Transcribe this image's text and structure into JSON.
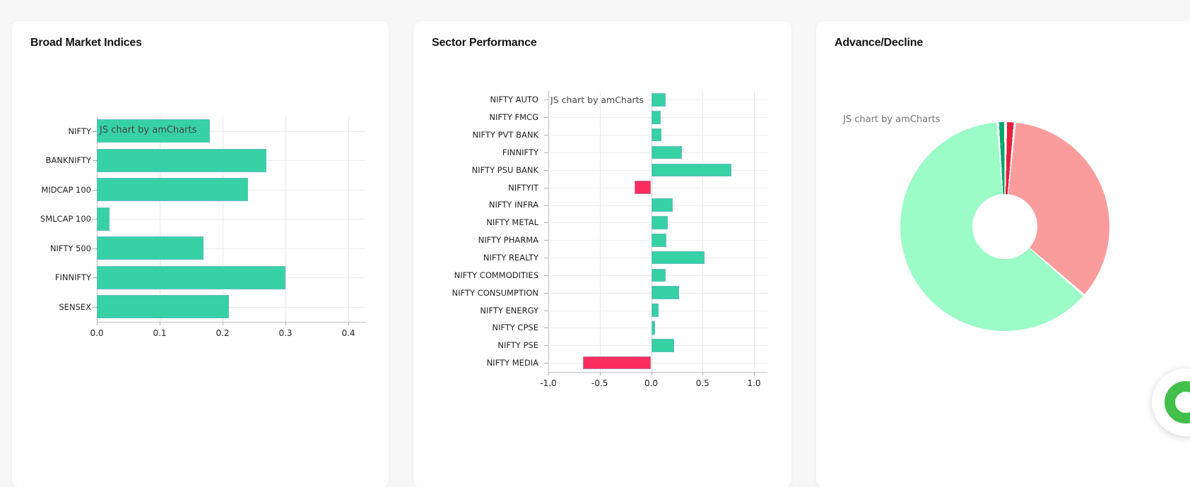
{
  "cards": [
    {
      "title": "Broad Market Indices"
    },
    {
      "title": "Sector Performance"
    },
    {
      "title": "Advance/Decline"
    }
  ],
  "watermark_text": "JS chart by amCharts",
  "colors": {
    "positive_bar": "#36d1a4",
    "negative_bar": "#fb2d5d",
    "bar_stroke": "rgba(136,176,213,0.6)",
    "donut_advances": "#9bfcc7",
    "donut_declines": "#fb9c9c",
    "donut_sliver_green": "#00a96c",
    "donut_sliver_red": "#e71f3e",
    "widget_green": "#43c04b",
    "grid": "#e7e7e7",
    "axis": "#c2c2c2"
  },
  "chart_data": [
    {
      "type": "bar",
      "orientation": "horizontal",
      "title": "Broad Market Indices",
      "categories": [
        "NIFTY",
        "BANKNIFTY",
        "MIDCAP 100",
        "SMLCAP 100",
        "NIFTY 500",
        "FINNIFTY",
        "SENSEX"
      ],
      "values": [
        0.18,
        0.27,
        0.24,
        0.02,
        0.17,
        0.3,
        0.21
      ],
      "xlim": [
        0,
        0.4
      ],
      "xticks": [
        0,
        0.1,
        0.2,
        0.3,
        0.4
      ],
      "xtick_labels": [
        "0.0",
        "0.1",
        "0.2",
        "0.3",
        "0.4"
      ],
      "grid": true,
      "legend": false,
      "watermark": "JS chart by amCharts"
    },
    {
      "type": "bar",
      "orientation": "horizontal",
      "title": "Sector Performance",
      "categories": [
        "NIFTY AUTO",
        "NIFTY FMCG",
        "NIFTY PVT BANK",
        "FINNIFTY",
        "NIFTY PSU BANK",
        "NIFTYIT",
        "NIFTY INFRA",
        "NIFTY METAL",
        "NIFTY PHARMA",
        "NIFTY REALTY",
        "NIFTY COMMODITIES",
        "NIFTY CONSUMPTION",
        "NIFTY ENERGY",
        "NIFTY CPSE",
        "NIFTY PSE",
        "NIFTY MEDIA"
      ],
      "values": [
        0.14,
        0.09,
        0.1,
        0.3,
        0.78,
        -0.16,
        0.21,
        0.16,
        0.15,
        0.52,
        0.14,
        0.27,
        0.07,
        0.04,
        0.22,
        -0.66
      ],
      "xlim": [
        -1,
        1
      ],
      "xticks": [
        -1,
        -0.5,
        0,
        0.5,
        1
      ],
      "xtick_labels": [
        "-1.0",
        "-0.5",
        "0.0",
        "0.5",
        "1.0"
      ],
      "grid": true,
      "legend": false,
      "watermark": "JS chart by amCharts"
    },
    {
      "type": "pie",
      "donut": true,
      "title": "Advance/Decline",
      "direction": "clockwise",
      "start_angle": "top",
      "legend": false,
      "slices": [
        {
          "name": "sliver-red",
          "pct": 1.0,
          "color": "#e71f3e"
        },
        {
          "name": "declines",
          "pct": 34.5,
          "color": "#fb9c9c"
        },
        {
          "name": "advances",
          "pct": 62.2,
          "color": "#9bfcc7"
        },
        {
          "name": "sliver-green",
          "pct": 0.8,
          "color": "#00a96c"
        }
      ],
      "watermark": "JS chart by amCharts"
    }
  ]
}
